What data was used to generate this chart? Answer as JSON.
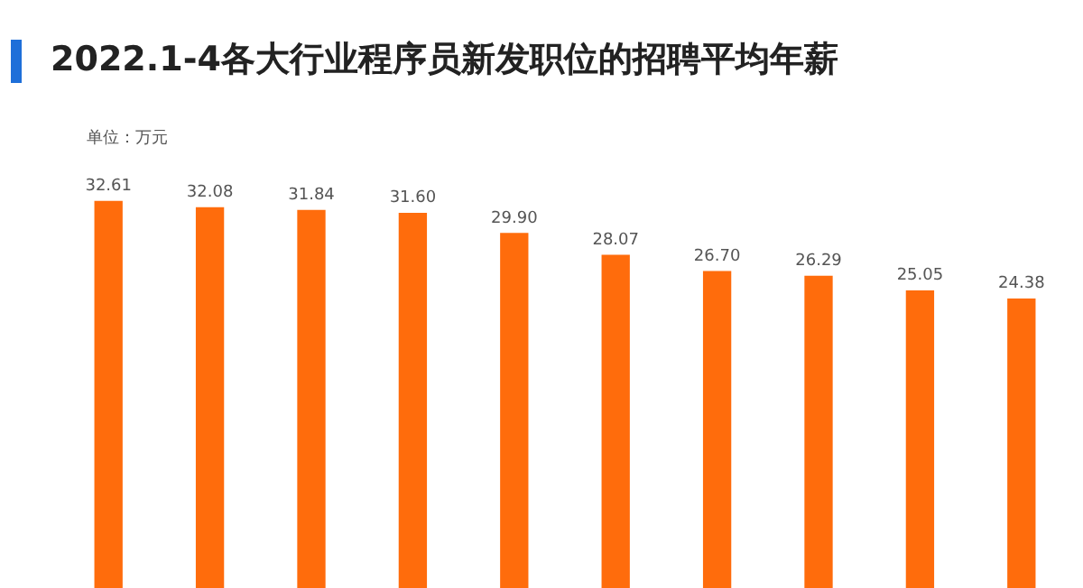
{
  "chart_data": {
    "type": "bar",
    "title": "2022.1-4各大行业程序员新发职位的招聘平均年薪",
    "annotations": [
      "单位：万元"
    ],
    "categories": [
      null,
      null,
      null,
      null,
      null,
      null,
      null,
      null,
      null,
      null
    ],
    "values": [
      32.61,
      32.08,
      31.84,
      31.6,
      29.9,
      28.07,
      26.7,
      26.29,
      25.05,
      24.38
    ],
    "value_labels": [
      "32.61",
      "32.08",
      "31.84",
      "31.60",
      "29.90",
      "28.07",
      "26.70",
      "26.29",
      "25.05",
      "24.38"
    ],
    "color": "#ff6c0c",
    "grid": false,
    "legend": false
  }
}
